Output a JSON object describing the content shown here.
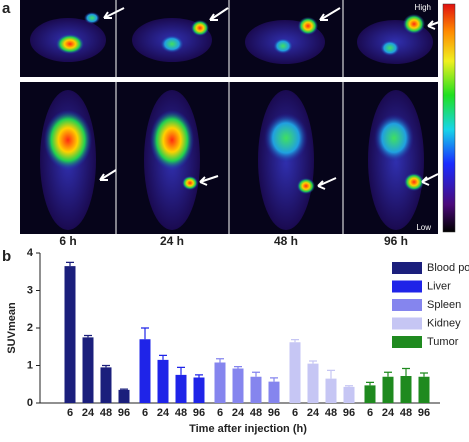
{
  "panel_a": {
    "label": "a",
    "times": [
      "6 h",
      "24 h",
      "48 h",
      "96 h"
    ],
    "scale_high": "High",
    "scale_low": "Low"
  },
  "chart_data": {
    "type": "bar",
    "panel_label": "b",
    "y_label": "SUVmean",
    "x_label": "Time after injection (h)",
    "categories": [
      "6",
      "24",
      "48",
      "96"
    ],
    "series": [
      {
        "name": "Blood pool",
        "color": "#1b1f7c",
        "values": [
          3.65,
          1.75,
          0.95,
          0.35
        ],
        "errors": [
          0.1,
          0.05,
          0.05,
          0.02
        ]
      },
      {
        "name": "Liver",
        "color": "#1f24e8",
        "values": [
          1.7,
          1.15,
          0.75,
          0.68
        ],
        "errors": [
          0.3,
          0.12,
          0.2,
          0.07
        ]
      },
      {
        "name": "Spleen",
        "color": "#8585ee",
        "values": [
          1.08,
          0.92,
          0.7,
          0.57
        ],
        "errors": [
          0.1,
          0.05,
          0.12,
          0.1
        ]
      },
      {
        "name": "Kidney",
        "color": "#c6c6f4",
        "values": [
          1.62,
          1.05,
          0.65,
          0.43
        ],
        "errors": [
          0.07,
          0.07,
          0.22,
          0.03
        ]
      },
      {
        "name": "Tumor",
        "color": "#1f8a1f",
        "values": [
          0.47,
          0.7,
          0.72,
          0.7
        ],
        "errors": [
          0.08,
          0.12,
          0.2,
          0.1
        ]
      }
    ],
    "ylim": [
      0,
      4
    ],
    "yticks": [
      0,
      1,
      2,
      3,
      4
    ],
    "legend": "upper right"
  }
}
